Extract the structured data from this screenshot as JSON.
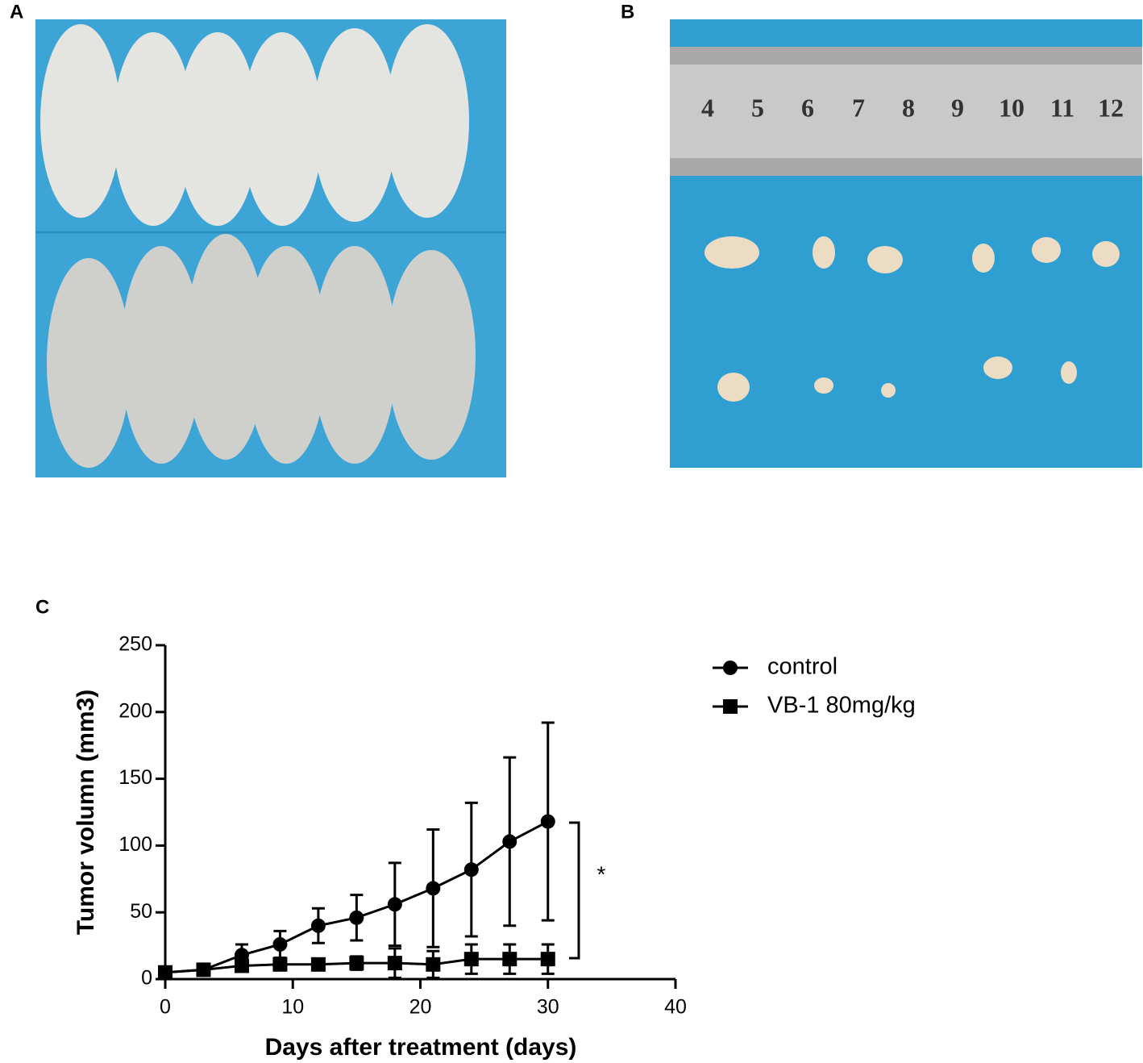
{
  "panels": {
    "a": "A",
    "b": "B",
    "c": "C"
  },
  "ruler_labels": [
    "4",
    "5",
    "6",
    "7",
    "8",
    "9",
    "10",
    "11",
    "12"
  ],
  "chart_data": {
    "type": "line",
    "xlabel": "Days after treatment (days)",
    "ylabel": "Tumor volumn (mm3)",
    "x": [
      0,
      3,
      6,
      9,
      12,
      15,
      18,
      21,
      24,
      27,
      30
    ],
    "series": [
      {
        "name": "control",
        "color": "#000000",
        "marker": "circle",
        "values": [
          5,
          7,
          18,
          26,
          40,
          46,
          56,
          68,
          82,
          103,
          118
        ],
        "errors": [
          1,
          1,
          8,
          10,
          13,
          17,
          31,
          44,
          50,
          63,
          74
        ]
      },
      {
        "name": "VB-1 80mg/kg",
        "color": "#000000",
        "marker": "square",
        "values": [
          5,
          7,
          10,
          11,
          11,
          12,
          12,
          11,
          15,
          15,
          15
        ],
        "errors": [
          1,
          1,
          3,
          4,
          4,
          5,
          11,
          10,
          11,
          11,
          11
        ]
      }
    ],
    "annotation": "*",
    "xlim": [
      0,
      40
    ],
    "ylim": [
      0,
      250
    ],
    "xticks": [
      0,
      10,
      20,
      30,
      40
    ],
    "yticks": [
      0,
      50,
      100,
      150,
      200,
      250
    ],
    "legend": "right"
  }
}
